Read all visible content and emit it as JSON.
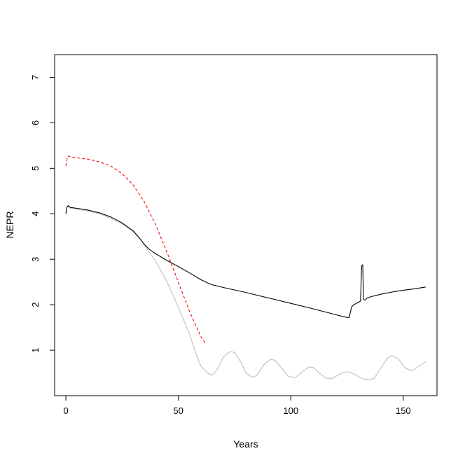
{
  "chart_data": {
    "type": "line",
    "title": "",
    "xlabel": "Years",
    "ylabel": "NEPR",
    "xlim": [
      -5,
      165
    ],
    "ylim": [
      0.0,
      7.5
    ],
    "x_ticks": [
      0,
      50,
      100,
      150
    ],
    "y_ticks": [
      1,
      2,
      3,
      4,
      5,
      6,
      7
    ],
    "grid": false,
    "legend": "none",
    "series": [
      {
        "color": "#bebebe",
        "style": "solid",
        "points": [
          [
            0,
            4.0
          ],
          [
            0.5,
            4.15
          ],
          [
            1,
            4.16
          ],
          [
            2,
            4.12
          ],
          [
            5,
            4.1
          ],
          [
            10,
            4.06
          ],
          [
            15,
            4.0
          ],
          [
            20,
            3.9
          ],
          [
            25,
            3.78
          ],
          [
            30,
            3.6
          ],
          [
            33,
            3.45
          ],
          [
            35,
            3.3
          ],
          [
            40,
            2.95
          ],
          [
            45,
            2.5
          ],
          [
            50,
            1.95
          ],
          [
            55,
            1.35
          ],
          [
            58,
            0.9
          ],
          [
            60,
            0.65
          ],
          [
            63,
            0.5
          ],
          [
            65,
            0.45
          ],
          [
            67,
            0.55
          ],
          [
            70,
            0.85
          ],
          [
            73,
            0.97
          ],
          [
            75,
            0.95
          ],
          [
            78,
            0.72
          ],
          [
            80,
            0.5
          ],
          [
            83,
            0.4
          ],
          [
            85,
            0.45
          ],
          [
            88,
            0.68
          ],
          [
            91,
            0.8
          ],
          [
            93,
            0.78
          ],
          [
            96,
            0.6
          ],
          [
            99,
            0.42
          ],
          [
            102,
            0.4
          ],
          [
            105,
            0.52
          ],
          [
            108,
            0.63
          ],
          [
            110,
            0.62
          ],
          [
            113,
            0.48
          ],
          [
            116,
            0.38
          ],
          [
            118,
            0.37
          ],
          [
            121,
            0.45
          ],
          [
            124,
            0.52
          ],
          [
            126,
            0.52
          ],
          [
            129,
            0.45
          ],
          [
            132,
            0.37
          ],
          [
            135,
            0.35
          ],
          [
            137,
            0.38
          ],
          [
            140,
            0.6
          ],
          [
            143,
            0.83
          ],
          [
            145,
            0.88
          ],
          [
            148,
            0.8
          ],
          [
            151,
            0.6
          ],
          [
            154,
            0.55
          ],
          [
            157,
            0.65
          ],
          [
            160,
            0.75
          ]
        ]
      },
      {
        "color": "#000000",
        "style": "solid",
        "points": [
          [
            0,
            4.0
          ],
          [
            0.5,
            4.15
          ],
          [
            1,
            4.18
          ],
          [
            2,
            4.14
          ],
          [
            5,
            4.12
          ],
          [
            10,
            4.08
          ],
          [
            15,
            4.02
          ],
          [
            20,
            3.93
          ],
          [
            25,
            3.8
          ],
          [
            30,
            3.62
          ],
          [
            33,
            3.45
          ],
          [
            35,
            3.32
          ],
          [
            37,
            3.22
          ],
          [
            40,
            3.12
          ],
          [
            45,
            2.97
          ],
          [
            50,
            2.84
          ],
          [
            55,
            2.7
          ],
          [
            60,
            2.55
          ],
          [
            63,
            2.48
          ],
          [
            65,
            2.44
          ],
          [
            70,
            2.38
          ],
          [
            80,
            2.27
          ],
          [
            90,
            2.15
          ],
          [
            100,
            2.03
          ],
          [
            110,
            1.91
          ],
          [
            120,
            1.78
          ],
          [
            125,
            1.72
          ],
          [
            126,
            1.72
          ],
          [
            127,
            1.95
          ],
          [
            128,
            2.0
          ],
          [
            130,
            2.05
          ],
          [
            131,
            2.08
          ],
          [
            131.5,
            2.85
          ],
          [
            132,
            2.88
          ],
          [
            132.3,
            2.12
          ],
          [
            133,
            2.1
          ],
          [
            134,
            2.15
          ],
          [
            136,
            2.18
          ],
          [
            140,
            2.23
          ],
          [
            145,
            2.28
          ],
          [
            150,
            2.32
          ],
          [
            155,
            2.35
          ],
          [
            160,
            2.39
          ]
        ]
      },
      {
        "color": "#ff0000",
        "style": "dashed",
        "points": [
          [
            0,
            5.05
          ],
          [
            0.5,
            5.2
          ],
          [
            1,
            5.27
          ],
          [
            2,
            5.25
          ],
          [
            5,
            5.23
          ],
          [
            10,
            5.2
          ],
          [
            15,
            5.14
          ],
          [
            20,
            5.05
          ],
          [
            25,
            4.88
          ],
          [
            30,
            4.63
          ],
          [
            35,
            4.25
          ],
          [
            40,
            3.75
          ],
          [
            45,
            3.15
          ],
          [
            50,
            2.5
          ],
          [
            55,
            1.85
          ],
          [
            60,
            1.3
          ],
          [
            62,
            1.15
          ]
        ]
      }
    ]
  }
}
